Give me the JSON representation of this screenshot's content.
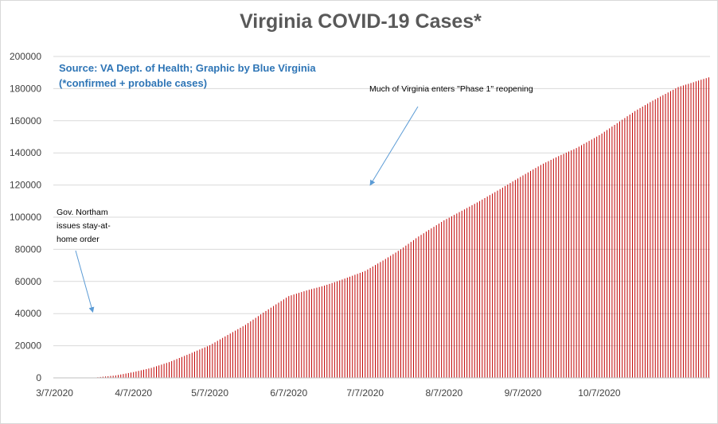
{
  "chart_data": {
    "type": "bar",
    "title": "Virginia COVID-19 Cases*",
    "xlabel": "",
    "ylabel": "",
    "x_start": "2020-03-07",
    "x_end": "2020-11-19",
    "ylim": [
      0,
      200000
    ],
    "y_ticks": [
      "0",
      "20000",
      "40000",
      "60000",
      "80000",
      "100000",
      "120000",
      "140000",
      "160000",
      "180000",
      "200000"
    ],
    "x_tick_labels": [
      "3/7/2020",
      "4/7/2020",
      "5/7/2020",
      "6/7/2020",
      "7/7/2020",
      "8/7/2020",
      "9/7/2020",
      "10/7/2020"
    ],
    "x_tick_dates": [
      "2020-03-07",
      "2020-04-07",
      "2020-05-07",
      "2020-06-07",
      "2020-07-07",
      "2020-08-07",
      "2020-09-07",
      "2020-10-07"
    ],
    "bar_color": "#c00000",
    "grid": true,
    "series": [
      {
        "points": [
          {
            "date": "2020-03-07",
            "value": 0
          },
          {
            "date": "2020-03-23",
            "value": 0
          },
          {
            "date": "2020-03-24",
            "value": 400
          },
          {
            "date": "2020-03-31",
            "value": 1500
          },
          {
            "date": "2020-04-07",
            "value": 3600
          },
          {
            "date": "2020-04-14",
            "value": 6200
          },
          {
            "date": "2020-04-21",
            "value": 9800
          },
          {
            "date": "2020-04-28",
            "value": 14300
          },
          {
            "date": "2020-05-07",
            "value": 20300
          },
          {
            "date": "2020-05-14",
            "value": 26700
          },
          {
            "date": "2020-05-21",
            "value": 33000
          },
          {
            "date": "2020-05-28",
            "value": 40600
          },
          {
            "date": "2020-06-07",
            "value": 50900
          },
          {
            "date": "2020-06-14",
            "value": 54400
          },
          {
            "date": "2020-06-21",
            "value": 57400
          },
          {
            "date": "2020-06-28",
            "value": 61200
          },
          {
            "date": "2020-07-07",
            "value": 66500
          },
          {
            "date": "2020-07-14",
            "value": 73000
          },
          {
            "date": "2020-07-21",
            "value": 80000
          },
          {
            "date": "2020-07-28",
            "value": 88000
          },
          {
            "date": "2020-08-07",
            "value": 98000
          },
          {
            "date": "2020-08-14",
            "value": 104000
          },
          {
            "date": "2020-08-21",
            "value": 110000
          },
          {
            "date": "2020-08-28",
            "value": 116500
          },
          {
            "date": "2020-09-07",
            "value": 126000
          },
          {
            "date": "2020-09-14",
            "value": 132500
          },
          {
            "date": "2020-09-21",
            "value": 138000
          },
          {
            "date": "2020-09-28",
            "value": 143000
          },
          {
            "date": "2020-10-07",
            "value": 151000
          },
          {
            "date": "2020-10-14",
            "value": 158500
          },
          {
            "date": "2020-10-21",
            "value": 166000
          },
          {
            "date": "2020-10-28",
            "value": 172500
          },
          {
            "date": "2020-11-07",
            "value": 181000
          },
          {
            "date": "2020-11-14",
            "value": 184500
          },
          {
            "date": "2020-11-19",
            "value": 187000
          }
        ]
      }
    ],
    "annotations": [
      {
        "text": "Source: VA Dept. of Health; Graphic by Blue Virginia",
        "style": "source"
      },
      {
        "text": "(*confirmed + probable cases)",
        "style": "source"
      },
      {
        "text": "Much of Virginia enters \"Phase 1\" reopening",
        "arrow_to_date": "2020-07-09",
        "arrow_to_value": 120000
      },
      {
        "lines": [
          "Gov. Northam",
          "issues stay-at-",
          "home order"
        ],
        "arrow_to_date": "2020-03-22",
        "arrow_to_value": 41000
      }
    ]
  }
}
